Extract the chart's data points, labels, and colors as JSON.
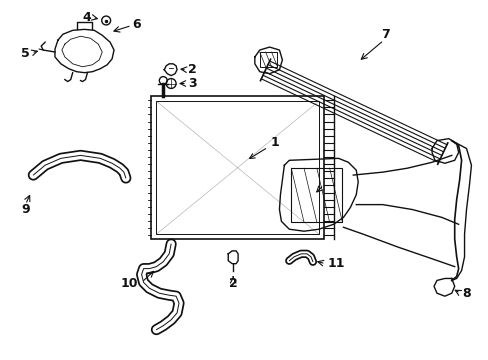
{
  "bg_color": "#ffffff",
  "line_color": "#111111",
  "label_color": "#000000",
  "figsize": [
    4.89,
    3.6
  ],
  "dpi": 100
}
